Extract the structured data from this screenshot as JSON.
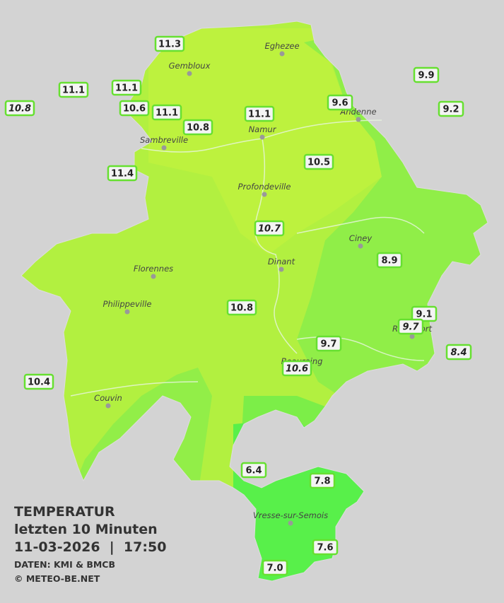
{
  "legend": {
    "title": "TEMPERATUR",
    "period": "letzten 10 Minuten",
    "datetime": "11-03-2026  |  17:50",
    "source": "DATEN: KMI & BMCB",
    "copyright": "© METEO-BE.NET"
  },
  "cities": [
    "Eghezee",
    "Gembloux",
    "Andenne",
    "Namur",
    "Sambreville",
    "Profondeville",
    "Ciney",
    "Dinant",
    "Florennes",
    "Philippeville",
    "Rochefort",
    "Beauraing",
    "Couvin",
    "Vresse-sur-Semois"
  ],
  "stations": [
    {
      "label": "11.3"
    },
    {
      "label": "11.1"
    },
    {
      "label": "11.1"
    },
    {
      "label": "10.8",
      "italic": true
    },
    {
      "label": "10.6"
    },
    {
      "label": "11.1"
    },
    {
      "label": "10.8"
    },
    {
      "label": "11.1"
    },
    {
      "label": "9.6"
    },
    {
      "label": "9.9"
    },
    {
      "label": "9.2"
    },
    {
      "label": "11.4"
    },
    {
      "label": "10.5"
    },
    {
      "label": "10.7",
      "italic": true
    },
    {
      "label": "8.9"
    },
    {
      "label": "10.8"
    },
    {
      "label": "9.1"
    },
    {
      "label": "9.7",
      "italic": true
    },
    {
      "label": "9.7"
    },
    {
      "label": "10.6",
      "italic": true
    },
    {
      "label": "8.4",
      "italic": true
    },
    {
      "label": "10.4"
    },
    {
      "label": "6.4"
    },
    {
      "label": "7.8"
    },
    {
      "label": "7.6"
    },
    {
      "label": "7.0"
    }
  ]
}
